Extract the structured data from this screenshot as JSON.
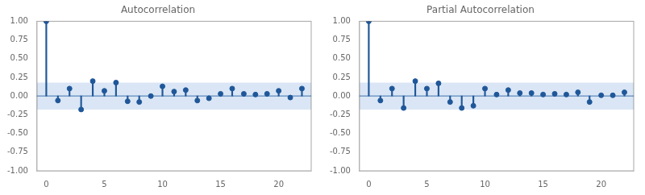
{
  "chart_data": [
    {
      "type": "stem",
      "title": "Autocorrelation",
      "x": [
        0,
        1,
        2,
        3,
        4,
        5,
        6,
        7,
        8,
        9,
        10,
        11,
        12,
        13,
        14,
        15,
        16,
        17,
        18,
        19,
        20,
        21,
        22
      ],
      "values": [
        1.0,
        -0.06,
        0.1,
        -0.18,
        0.2,
        0.07,
        0.18,
        -0.07,
        -0.08,
        0.0,
        0.13,
        0.06,
        0.08,
        -0.06,
        -0.03,
        0.03,
        0.1,
        0.03,
        0.02,
        0.03,
        0.07,
        -0.02,
        0.1
      ],
      "color": "#1f5799",
      "band": {
        "lower": -0.18,
        "upper": 0.18,
        "color": "#aec7e8"
      },
      "xlim": [
        -0.8,
        22.8
      ],
      "xticks": [
        0,
        5,
        10,
        15,
        20
      ],
      "ylim": [
        -1.0,
        1.0
      ],
      "yticks": [
        {
          "value": -1.0,
          "label": "-1.00"
        },
        {
          "value": -0.75,
          "label": "-0.75"
        },
        {
          "value": -0.5,
          "label": "-0.50"
        },
        {
          "value": -0.25,
          "label": "-0.25"
        },
        {
          "value": 0.0,
          "label": "0.00"
        },
        {
          "value": 0.25,
          "label": "0.25"
        },
        {
          "value": 0.5,
          "label": "0.50"
        },
        {
          "value": 0.75,
          "label": "0.75"
        },
        {
          "value": 1.0,
          "label": "1.00"
        }
      ],
      "grid": false
    },
    {
      "type": "stem",
      "title": "Partial Autocorrelation",
      "x": [
        0,
        1,
        2,
        3,
        4,
        5,
        6,
        7,
        8,
        9,
        10,
        11,
        12,
        13,
        14,
        15,
        16,
        17,
        18,
        19,
        20,
        21,
        22
      ],
      "values": [
        1.0,
        -0.06,
        0.1,
        -0.16,
        0.2,
        0.1,
        0.17,
        -0.08,
        -0.16,
        -0.13,
        0.1,
        0.02,
        0.08,
        0.04,
        0.04,
        0.02,
        0.03,
        0.02,
        0.05,
        -0.08,
        0.01,
        0.01,
        0.05
      ],
      "color": "#1f5799",
      "band": {
        "lower": -0.18,
        "upper": 0.18,
        "color": "#aec7e8"
      },
      "xlim": [
        -0.8,
        22.8
      ],
      "xticks": [
        0,
        5,
        10,
        15,
        20
      ],
      "ylim": [
        -1.0,
        1.0
      ],
      "yticks": [
        {
          "value": -1.0,
          "label": "-1.00"
        },
        {
          "value": -0.75,
          "label": "-0.75"
        },
        {
          "value": -0.5,
          "label": "-0.50"
        },
        {
          "value": -0.25,
          "label": "-0.25"
        },
        {
          "value": 0.0,
          "label": "0.00"
        },
        {
          "value": 0.25,
          "label": "0.25"
        },
        {
          "value": 0.5,
          "label": "0.50"
        },
        {
          "value": 0.75,
          "label": "0.75"
        },
        {
          "value": 1.0,
          "label": "1.00"
        }
      ],
      "grid": false
    }
  ]
}
